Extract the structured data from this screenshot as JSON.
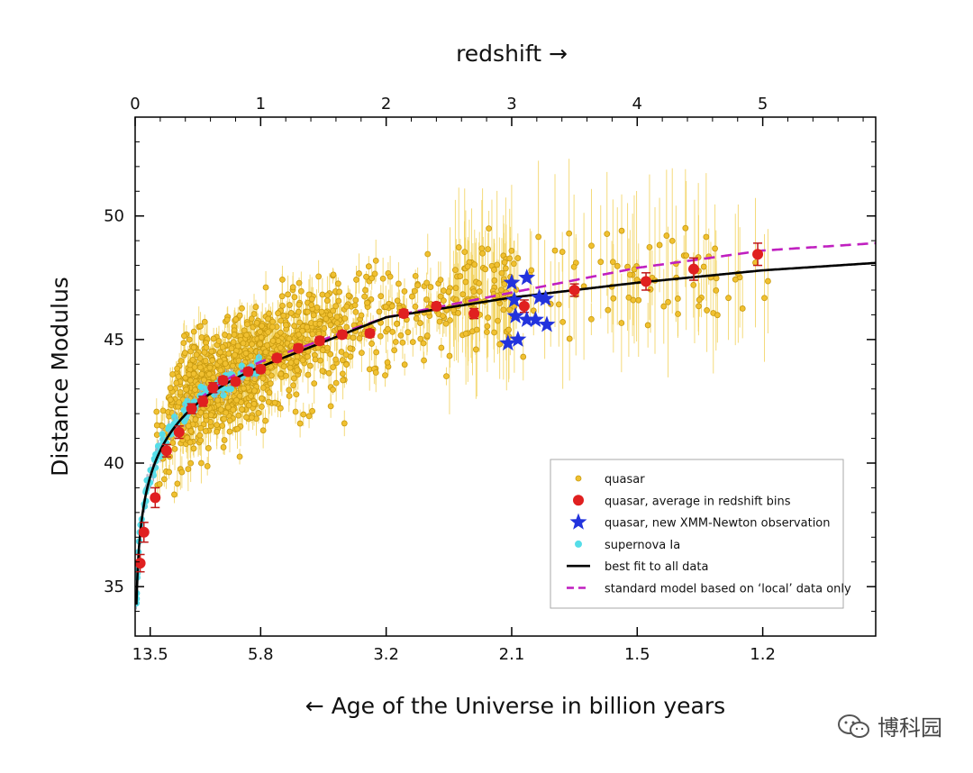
{
  "chart_data": {
    "type": "scatter",
    "title": "",
    "top_axis_label": "redshift →",
    "bottom_axis_label": "← Age of the Universe in billion years",
    "ylabel": "Distance Modulus",
    "xlim": [
      0,
      5.9
    ],
    "ylim": [
      33,
      54
    ],
    "top_ticks": [
      0,
      1,
      2,
      3,
      4,
      5
    ],
    "top_tick_labels": [
      "0",
      "1",
      "2",
      "3",
      "4",
      "5"
    ],
    "bottom_tick_positions": [
      0.12,
      1.0,
      2.0,
      3.0,
      4.0,
      5.0
    ],
    "bottom_tick_labels": [
      "13.5",
      "5.8",
      "3.2",
      "2.1",
      "1.5",
      "1.2"
    ],
    "y_ticks": [
      35,
      40,
      45,
      50
    ],
    "colors": {
      "quasar": "#f0c030",
      "quasar_edge": "#c89a10",
      "quasar_err": "#f2d25a",
      "avg": "#e02020",
      "xmm": "#2233dd",
      "sn": "#55dde8",
      "fit": "#000000",
      "model": "#c020c0"
    },
    "legend": {
      "position": "lower-right",
      "entries": [
        {
          "label": "quasar",
          "marker": "small-circle"
        },
        {
          "label": "quasar, average in redshift bins",
          "marker": "circle"
        },
        {
          "label": "quasar, new XMM-Newton observation",
          "marker": "star"
        },
        {
          "label": "supernova Ia",
          "marker": "circle"
        },
        {
          "label": "best fit to all data",
          "marker": "solid-line"
        },
        {
          "label": "standard model based on ‘local’ data only",
          "marker": "dashed-line"
        }
      ]
    },
    "series": [
      {
        "name": "quasar, average in redshift bins",
        "points": [
          {
            "z": 0.04,
            "mu": 35.95,
            "err": 0.35
          },
          {
            "z": 0.07,
            "mu": 37.2,
            "err": 0.4
          },
          {
            "z": 0.16,
            "mu": 38.6,
            "err": 0.4
          },
          {
            "z": 0.25,
            "mu": 40.5,
            "err": 0.25
          },
          {
            "z": 0.35,
            "mu": 41.25,
            "err": 0.25
          },
          {
            "z": 0.45,
            "mu": 42.2,
            "err": 0.2
          },
          {
            "z": 0.54,
            "mu": 42.5,
            "err": 0.2
          },
          {
            "z": 0.62,
            "mu": 43.05,
            "err": 0.2
          },
          {
            "z": 0.7,
            "mu": 43.35,
            "err": 0.15
          },
          {
            "z": 0.8,
            "mu": 43.3,
            "err": 0.15
          },
          {
            "z": 0.9,
            "mu": 43.7,
            "err": 0.15
          },
          {
            "z": 1.0,
            "mu": 43.8,
            "err": 0.15
          },
          {
            "z": 1.13,
            "mu": 44.25,
            "err": 0.15
          },
          {
            "z": 1.3,
            "mu": 44.65,
            "err": 0.15
          },
          {
            "z": 1.47,
            "mu": 44.95,
            "err": 0.15
          },
          {
            "z": 1.65,
            "mu": 45.2,
            "err": 0.15
          },
          {
            "z": 1.87,
            "mu": 45.25,
            "err": 0.15
          },
          {
            "z": 2.14,
            "mu": 46.05,
            "err": 0.15
          },
          {
            "z": 2.4,
            "mu": 46.35,
            "err": 0.15
          },
          {
            "z": 2.7,
            "mu": 46.05,
            "err": 0.2
          },
          {
            "z": 3.1,
            "mu": 46.35,
            "err": 0.25
          },
          {
            "z": 3.5,
            "mu": 47.0,
            "err": 0.25
          },
          {
            "z": 4.07,
            "mu": 47.35,
            "err": 0.35
          },
          {
            "z": 4.45,
            "mu": 47.85,
            "err": 0.45
          },
          {
            "z": 4.96,
            "mu": 48.45,
            "err": 0.45
          }
        ]
      },
      {
        "name": "quasar, new XMM-Newton observation",
        "points": [
          {
            "z": 3.0,
            "mu": 47.3
          },
          {
            "z": 3.12,
            "mu": 47.5
          },
          {
            "z": 3.02,
            "mu": 46.6
          },
          {
            "z": 3.22,
            "mu": 46.7
          },
          {
            "z": 3.27,
            "mu": 46.65
          },
          {
            "z": 3.03,
            "mu": 45.95
          },
          {
            "z": 3.12,
            "mu": 45.8
          },
          {
            "z": 3.19,
            "mu": 45.8
          },
          {
            "z": 3.28,
            "mu": 45.6
          },
          {
            "z": 2.97,
            "mu": 44.85
          },
          {
            "z": 3.05,
            "mu": 45.0
          }
        ]
      },
      {
        "name": "supernova Ia",
        "range": {
          "z_min": 0.01,
          "z_max": 1.0,
          "count": 120,
          "scatter": 0.18
        }
      },
      {
        "name": "quasar",
        "range": {
          "z_min": 0.05,
          "z_max": 5.05,
          "count": 1300,
          "scatter_mu": 1.3,
          "err_max": 2.5
        }
      },
      {
        "name": "best fit to all data",
        "style": "solid",
        "curve_mu_at_z": {
          "0.01": 33.2,
          "1": 43.9,
          "2": 45.9,
          "3": 46.7,
          "4": 47.3,
          "5": 47.8,
          "5.9": 48.1
        }
      },
      {
        "name": "standard model based on ‘local’ data only",
        "style": "dashed",
        "curve_mu_at_z": {
          "1": 44.1,
          "2": 45.9,
          "3": 46.9,
          "4": 47.9,
          "5": 48.6,
          "5.9": 48.9
        }
      }
    ]
  },
  "watermark": {
    "text": "博科园",
    "icon": "wechat-logo-icon"
  }
}
